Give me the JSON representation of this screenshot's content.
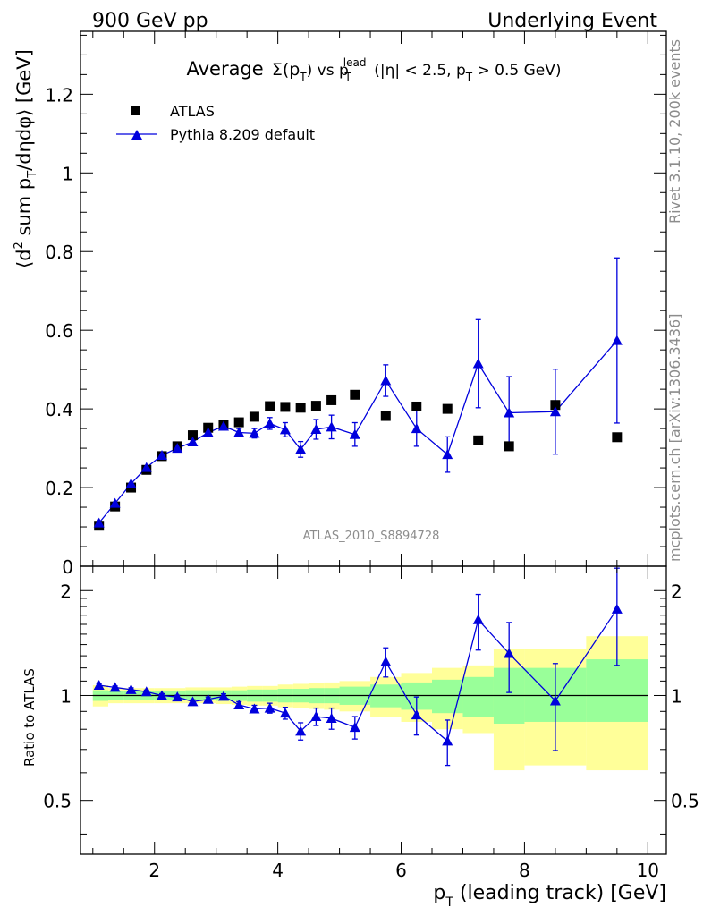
{
  "header": {
    "left": "900 GeV pp",
    "right": "Underlying Event"
  },
  "side_labels": {
    "rivet": "Rivet 3.1.10,  200k events",
    "mcplots": "mcplots.cern.ch [arXiv:1306.3436]"
  },
  "chart_data": [
    {
      "type": "scatter",
      "title_parts": {
        "average": "Average",
        "sigma": "Σ(p",
        "T1": "T",
        "close_vs": ") vs p",
        "sup": "lead",
        "T2": "T",
        "cut1": " (|η| < 2.5, p",
        "T3": "T",
        "cut2": " > 0.5 GeV)"
      },
      "ylabel_parts": {
        "a": "⟨d",
        "sup": "2",
        "b": " sum p",
        "sub": "T",
        "c": "/dηdφ⟩ [GeV]"
      },
      "watermark": "ATLAS_2010_S8894728",
      "xlim": [
        0.8,
        10.3
      ],
      "ylim": [
        0,
        1.36
      ],
      "y_ticks": [
        0,
        0.2,
        0.4,
        0.6,
        0.8,
        1,
        1.2
      ],
      "y_tick_labels": [
        "0",
        "0.2",
        "0.4",
        "0.6",
        "0.8",
        "1",
        "1.2"
      ],
      "legend_position": "top-left",
      "series": [
        {
          "name": "ATLAS",
          "marker": "square",
          "color": "#000000",
          "x": [
            1.1,
            1.36,
            1.62,
            1.87,
            2.12,
            2.37,
            2.62,
            2.87,
            3.12,
            3.37,
            3.62,
            3.87,
            4.12,
            4.37,
            4.62,
            4.87,
            5.25,
            5.75,
            6.25,
            6.75,
            7.25,
            7.75,
            8.5,
            9.5
          ],
          "y": [
            0.103,
            0.152,
            0.2,
            0.245,
            0.28,
            0.305,
            0.333,
            0.352,
            0.36,
            0.366,
            0.38,
            0.407,
            0.405,
            0.403,
            0.408,
            0.422,
            0.436,
            0.382,
            0.406,
            0.4,
            0.32,
            0.305,
            0.41,
            0.328
          ]
        },
        {
          "name": "Pythia 8.209 default",
          "marker": "triangle",
          "color": "#0000dd",
          "x": [
            1.1,
            1.36,
            1.62,
            1.87,
            2.12,
            2.37,
            2.62,
            2.87,
            3.12,
            3.37,
            3.62,
            3.87,
            4.12,
            4.37,
            4.62,
            4.87,
            5.25,
            5.75,
            6.25,
            6.75,
            7.25,
            7.75,
            8.5,
            9.5
          ],
          "y": [
            0.11,
            0.16,
            0.21,
            0.251,
            0.282,
            0.3,
            0.316,
            0.34,
            0.356,
            0.34,
            0.338,
            0.363,
            0.347,
            0.297,
            0.348,
            0.354,
            0.335,
            0.472,
            0.35,
            0.284,
            0.515,
            0.39,
            0.393,
            0.574
          ],
          "yerr": [
            0.003,
            0.003,
            0.003,
            0.004,
            0.004,
            0.005,
            0.006,
            0.008,
            0.009,
            0.01,
            0.012,
            0.015,
            0.018,
            0.02,
            0.025,
            0.03,
            0.03,
            0.04,
            0.045,
            0.045,
            0.112,
            0.092,
            0.108,
            0.21
          ]
        }
      ]
    },
    {
      "type": "line",
      "ylabel": "Ratio to ATLAS",
      "xlabel_parts": {
        "a": "p",
        "sub": "T",
        "b": " (leading track) [GeV]"
      },
      "xlim": [
        0.8,
        10.3
      ],
      "ylim": [
        0.35,
        2.35
      ],
      "log_scale_y": true,
      "x_ticks": [
        2,
        4,
        6,
        8,
        10
      ],
      "x_tick_labels": [
        "2",
        "4",
        "6",
        "8",
        "10"
      ],
      "y_ticks": [
        0.5,
        1,
        2
      ],
      "y_tick_labels": [
        "0.5",
        "1",
        "2"
      ],
      "reference_line": 1,
      "bins": [
        {
          "lo": 1.0,
          "hi": 1.25,
          "g": [
            0.965,
            1.035
          ],
          "y": [
            0.93,
            1.07
          ]
        },
        {
          "lo": 1.25,
          "hi": 1.5,
          "g": [
            0.97,
            1.03
          ],
          "y": [
            0.95,
            1.05
          ]
        },
        {
          "lo": 1.5,
          "hi": 1.75,
          "g": [
            0.97,
            1.03
          ],
          "y": [
            0.95,
            1.05
          ]
        },
        {
          "lo": 1.75,
          "hi": 2.0,
          "g": [
            0.97,
            1.03
          ],
          "y": [
            0.95,
            1.05
          ]
        },
        {
          "lo": 2.0,
          "hi": 2.25,
          "g": [
            0.97,
            1.03
          ],
          "y": [
            0.95,
            1.05
          ]
        },
        {
          "lo": 2.25,
          "hi": 2.5,
          "g": [
            0.97,
            1.03
          ],
          "y": [
            0.95,
            1.05
          ]
        },
        {
          "lo": 2.5,
          "hi": 2.75,
          "g": [
            0.97,
            1.035
          ],
          "y": [
            0.95,
            1.055
          ]
        },
        {
          "lo": 2.75,
          "hi": 3.0,
          "g": [
            0.97,
            1.035
          ],
          "y": [
            0.95,
            1.055
          ]
        },
        {
          "lo": 3.0,
          "hi": 3.25,
          "g": [
            0.965,
            1.035
          ],
          "y": [
            0.945,
            1.055
          ]
        },
        {
          "lo": 3.25,
          "hi": 3.5,
          "g": [
            0.965,
            1.035
          ],
          "y": [
            0.94,
            1.06
          ]
        },
        {
          "lo": 3.5,
          "hi": 3.75,
          "g": [
            0.96,
            1.04
          ],
          "y": [
            0.935,
            1.065
          ]
        },
        {
          "lo": 3.75,
          "hi": 4.0,
          "g": [
            0.96,
            1.04
          ],
          "y": [
            0.935,
            1.065
          ]
        },
        {
          "lo": 4.0,
          "hi": 4.25,
          "g": [
            0.955,
            1.045
          ],
          "y": [
            0.925,
            1.075
          ]
        },
        {
          "lo": 4.25,
          "hi": 4.5,
          "g": [
            0.955,
            1.045
          ],
          "y": [
            0.92,
            1.08
          ]
        },
        {
          "lo": 4.5,
          "hi": 4.75,
          "g": [
            0.95,
            1.05
          ],
          "y": [
            0.915,
            1.085
          ]
        },
        {
          "lo": 4.75,
          "hi": 5.0,
          "g": [
            0.95,
            1.05
          ],
          "y": [
            0.91,
            1.09
          ]
        },
        {
          "lo": 5.0,
          "hi": 5.5,
          "g": [
            0.94,
            1.06
          ],
          "y": [
            0.9,
            1.1
          ]
        },
        {
          "lo": 5.5,
          "hi": 6.0,
          "g": [
            0.925,
            1.075
          ],
          "y": [
            0.87,
            1.13
          ]
        },
        {
          "lo": 6.0,
          "hi": 6.5,
          "g": [
            0.91,
            1.09
          ],
          "y": [
            0.84,
            1.16
          ]
        },
        {
          "lo": 6.5,
          "hi": 7.0,
          "g": [
            0.89,
            1.11
          ],
          "y": [
            0.8,
            1.2
          ]
        },
        {
          "lo": 7.0,
          "hi": 7.5,
          "g": [
            0.87,
            1.13
          ],
          "y": [
            0.78,
            1.22
          ]
        },
        {
          "lo": 7.5,
          "hi": 8.0,
          "g": [
            0.83,
            1.2
          ],
          "y": [
            0.61,
            1.36
          ]
        },
        {
          "lo": 8.0,
          "hi": 9.0,
          "g": [
            0.84,
            1.2
          ],
          "y": [
            0.63,
            1.36
          ]
        },
        {
          "lo": 9.0,
          "hi": 10.0,
          "g": [
            0.84,
            1.27
          ],
          "y": [
            0.61,
            1.48
          ]
        }
      ],
      "series": [
        {
          "name": "Pythia 8.209 default",
          "color": "#0000dd",
          "x": [
            1.1,
            1.36,
            1.62,
            1.87,
            2.12,
            2.37,
            2.62,
            2.87,
            3.12,
            3.37,
            3.62,
            3.87,
            4.12,
            4.37,
            4.62,
            4.87,
            5.25,
            5.75,
            6.25,
            6.75,
            7.25,
            7.75,
            8.5,
            9.5
          ],
          "y": [
            1.07,
            1.055,
            1.04,
            1.025,
            1.0,
            0.99,
            0.96,
            0.975,
            0.995,
            0.94,
            0.915,
            0.92,
            0.89,
            0.79,
            0.87,
            0.86,
            0.81,
            1.25,
            0.88,
            0.74,
            1.65,
            1.32,
            0.965,
            1.77
          ],
          "yerr": [
            0.01,
            0.01,
            0.012,
            0.012,
            0.012,
            0.012,
            0.012,
            0.015,
            0.016,
            0.02,
            0.022,
            0.03,
            0.035,
            0.045,
            0.05,
            0.06,
            0.06,
            0.12,
            0.11,
            0.11,
            0.3,
            0.3,
            0.27,
            0.55
          ]
        }
      ]
    }
  ]
}
